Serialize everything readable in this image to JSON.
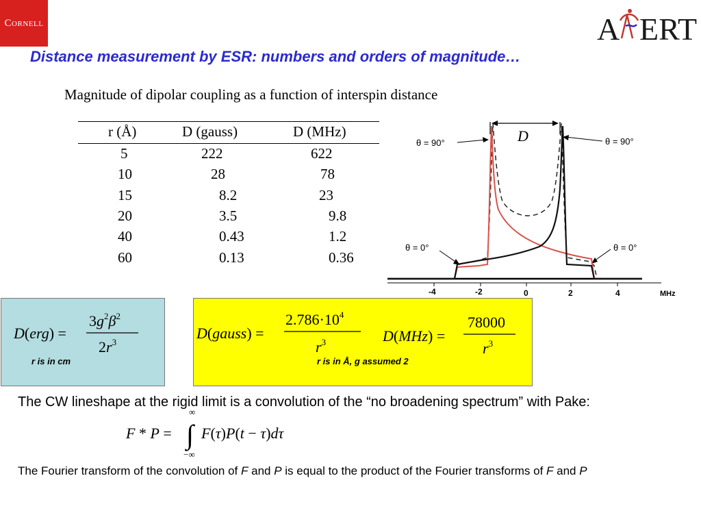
{
  "logos": {
    "left": "Cornell",
    "right": "ACERT"
  },
  "title": "Distance measurement by ESR: numbers and orders of magnitude…",
  "subtitle": "Magnitude of dipolar coupling as a function of interspin distance",
  "table": {
    "headers": [
      "r (Å)",
      "D (gauss)",
      "D (MHz)"
    ],
    "rows": [
      [
        "5",
        "222",
        "622"
      ],
      [
        "10",
        "28",
        "78"
      ],
      [
        "15",
        "8.2",
        "23"
      ],
      [
        "20",
        "3.5",
        "9.8"
      ],
      [
        "40",
        "0.43",
        "1.2"
      ],
      [
        "60",
        "0.13",
        "0.36"
      ]
    ]
  },
  "pake_figure": {
    "x_ticks": [
      "-4",
      "-2",
      "0",
      "2",
      "4"
    ],
    "x_unit": "MHz",
    "line_colors": {
      "black_solid": "#111111",
      "red_solid": "#d9534a",
      "dashed": "#222222"
    }
  },
  "formula_erg": {
    "note": "r is in cm",
    "box_color": "#b3dde0"
  },
  "formula_gauss_mhz": {
    "note": "r is in Å, g assumed 2",
    "box_color": "#ffff00"
  },
  "paragraph_convolution": {
    "text": "The CW lineshape at the rigid limit is a convolution of the “no broadening spectrum” with Pake:"
  },
  "paragraph_fourier": {
    "part1": "The Fourier transform of the convolution of ",
    "part2": " and ",
    "part3": " is equal to the product of the Fourier transforms of ",
    "part4": " and "
  },
  "colors": {
    "title": "#2a2ad0",
    "cornell_red": "#d6211f"
  }
}
